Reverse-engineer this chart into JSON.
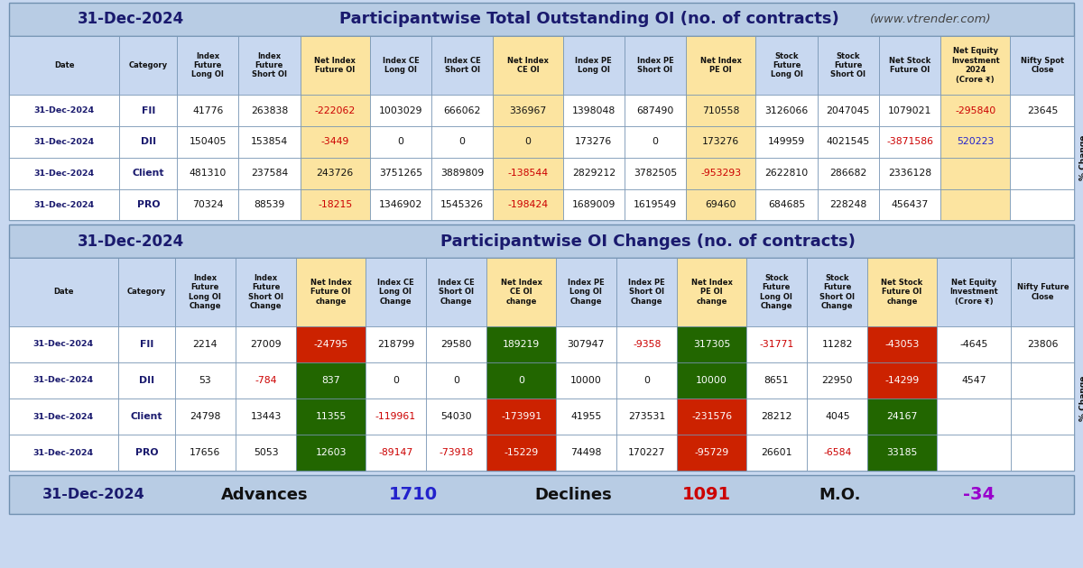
{
  "date": "31-Dec-2024",
  "title1": "Participantwise Total Outstanding OI (no. of contracts)",
  "title2": "Participantwise OI Changes (no. of contracts)",
  "website": "(www.vtrender.com)",
  "section1_headers": [
    "Date",
    "Category",
    "Index\nFuture\nLong OI",
    "Index\nFuture\nShort OI",
    "Net Index\nFuture OI",
    "Index CE\nLong OI",
    "Index CE\nShort OI",
    "Net Index\nCE OI",
    "Index PE\nLong OI",
    "Index PE\nShort OI",
    "Net Index\nPE OI",
    "Stock\nFuture\nLong OI",
    "Stock\nFuture\nShort OI",
    "Net Stock\nFuture OI",
    "Net Equity\nInvestment\n2024\n(Crore ₹)",
    "Nifty Spot\nClose"
  ],
  "section1_rows": [
    [
      "31-Dec-2024",
      "FII",
      "41776",
      "263838",
      "-222062",
      "1003029",
      "666062",
      "336967",
      "1398048",
      "687490",
      "710558",
      "3126066",
      "2047045",
      "1079021",
      "-295840",
      "23645"
    ],
    [
      "31-Dec-2024",
      "DII",
      "150405",
      "153854",
      "-3449",
      "0",
      "0",
      "0",
      "173276",
      "0",
      "173276",
      "149959",
      "4021545",
      "-3871586",
      "520223",
      ""
    ],
    [
      "31-Dec-2024",
      "Client",
      "481310",
      "237584",
      "243726",
      "3751265",
      "3889809",
      "-138544",
      "2829212",
      "3782505",
      "-953293",
      "2622810",
      "286682",
      "2336128",
      "",
      ""
    ],
    [
      "31-Dec-2024",
      "PRO",
      "70324",
      "88539",
      "-18215",
      "1346902",
      "1545326",
      "-198424",
      "1689009",
      "1619549",
      "69460",
      "684685",
      "228248",
      "456437",
      "",
      ""
    ]
  ],
  "section1_text_colors": {
    "0,4": "#cc0000",
    "1,4": "#cc0000",
    "2,4": "#111111",
    "3,4": "#cc0000",
    "0,7": "#111111",
    "1,7": "#111111",
    "2,7": "#cc0000",
    "3,7": "#cc0000",
    "0,10": "#111111",
    "1,10": "#111111",
    "2,10": "#cc0000",
    "3,10": "#111111",
    "0,13": "#111111",
    "1,13": "#cc0000",
    "2,13": "#111111",
    "3,13": "#111111",
    "0,14": "#cc0000",
    "1,14": "#2222cc",
    "3,15": "#cc0000"
  },
  "section1_highlight_cols": [
    4,
    7,
    10,
    14
  ],
  "section2_headers": [
    "Date",
    "Category",
    "Index\nFuture\nLong OI\nChange",
    "Index\nFuture\nShort OI\nChange",
    "Net Index\nFuture OI\nchange",
    "Index CE\nLong OI\nChange",
    "Index CE\nShort OI\nChange",
    "Net Index\nCE OI\nchange",
    "Index PE\nLong OI\nChange",
    "Index PE\nShort OI\nChange",
    "Net Index\nPE OI\nchange",
    "Stock\nFuture\nLong OI\nChange",
    "Stock\nFuture\nShort OI\nChange",
    "Net Stock\nFuture OI\nchange",
    "Net Equity\nInvestment\n(Crore ₹)",
    "Nifty Future\nClose"
  ],
  "section2_rows": [
    [
      "31-Dec-2024",
      "FII",
      "2214",
      "27009",
      "-24795",
      "218799",
      "29580",
      "189219",
      "307947",
      "-9358",
      "317305",
      "-31771",
      "11282",
      "-43053",
      "-4645",
      "23806"
    ],
    [
      "31-Dec-2024",
      "DII",
      "53",
      "-784",
      "837",
      "0",
      "0",
      "0",
      "10000",
      "0",
      "10000",
      "8651",
      "22950",
      "-14299",
      "4547",
      ""
    ],
    [
      "31-Dec-2024",
      "Client",
      "24798",
      "13443",
      "11355",
      "-119961",
      "54030",
      "-173991",
      "41955",
      "273531",
      "-231576",
      "28212",
      "4045",
      "24167",
      "",
      ""
    ],
    [
      "31-Dec-2024",
      "PRO",
      "17656",
      "5053",
      "12603",
      "-89147",
      "-73918",
      "-15229",
      "74498",
      "170227",
      "-95729",
      "26601",
      "-6584",
      "33185",
      "",
      ""
    ]
  ],
  "section2_cell_bg": {
    "0,4": "red",
    "1,4": "green",
    "2,4": "green",
    "3,4": "green",
    "0,7": "green",
    "1,7": "green",
    "2,7": "red",
    "3,7": "red",
    "0,10": "green",
    "1,10": "green",
    "2,10": "red",
    "3,10": "red",
    "0,13": "red",
    "1,13": "red",
    "2,13": "green",
    "3,13": "green"
  },
  "section2_text_colors": {
    "1,3": "#cc0000",
    "0,9": "#cc0000",
    "2,5": "#cc0000",
    "3,5": "#cc0000",
    "3,6": "#cc0000",
    "0,11": "#cc0000",
    "3,12": "#cc0000"
  },
  "section2_highlight_cols": [
    4,
    7,
    10,
    13
  ],
  "advances_label": "Advances",
  "advances_value": "1710",
  "declines_label": "Declines",
  "declines_value": "1091",
  "mo_label": "M.O.",
  "mo_value": "-34",
  "bg_main": "#c8d8f0",
  "bg_title_bar": "#b8cce4",
  "bg_header_row": "#c8d8f0",
  "bg_white": "#ffffff",
  "bg_highlight_col": "#fce4a0",
  "bg_cell_red": "#cc2200",
  "bg_cell_green": "#226600",
  "color_red": "#cc0000",
  "color_blue": "#2222cc",
  "color_black": "#111111",
  "color_navy": "#1a1a6e",
  "color_purple": "#9900cc"
}
